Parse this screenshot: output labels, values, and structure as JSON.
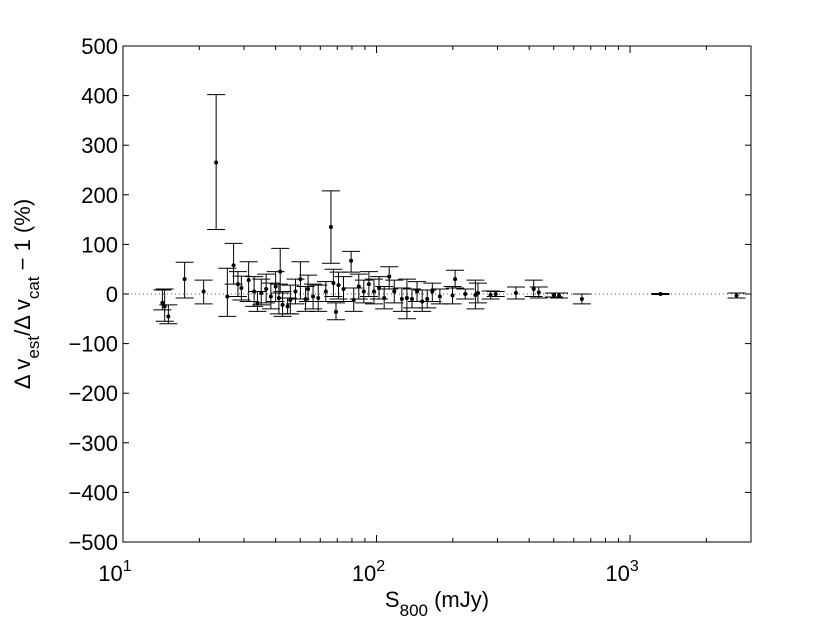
{
  "chart_data": {
    "type": "scatter",
    "x_scale": "log",
    "xlim": [
      10,
      3000
    ],
    "ylim": [
      -500,
      500
    ],
    "grid": false,
    "legend": "none",
    "reference_line": {
      "y": 0,
      "style": "dotted"
    },
    "yticks": [
      -500,
      -400,
      -300,
      -200,
      -100,
      0,
      100,
      200,
      300,
      400,
      500
    ],
    "yticks_text": [
      "−500",
      "−400",
      "−300",
      "−200",
      "−100",
      "0",
      "100",
      "200",
      "300",
      "400",
      "500"
    ],
    "xticks": [
      {
        "value": 10,
        "base": "10",
        "exp": "1"
      },
      {
        "value": 100,
        "base": "10",
        "exp": "2"
      },
      {
        "value": 1000,
        "base": "10",
        "exp": "3"
      }
    ],
    "xlabel": {
      "main": "S",
      "sub": "800",
      "rest": " (mJy)"
    },
    "ylabel": {
      "p1": "Δ v",
      "sub1": "est",
      "p2": "/Δ v",
      "sub2": "cat",
      "p3": " − 1 (%)"
    },
    "points": [
      {
        "x": 14.3,
        "y": -18,
        "lo": -32,
        "hi": 8
      },
      {
        "x": 14.6,
        "y": -25,
        "lo": -55,
        "hi": 10
      },
      {
        "x": 15.1,
        "y": -45,
        "lo": -60,
        "hi": -22
      },
      {
        "x": 17.5,
        "y": 30,
        "lo": -8,
        "hi": 64
      },
      {
        "x": 20.8,
        "y": 5,
        "lo": -20,
        "hi": 28
      },
      {
        "x": 23.3,
        "y": 265,
        "lo": 130,
        "hi": 402
      },
      {
        "x": 25.8,
        "y": -5,
        "lo": -45,
        "hi": 52
      },
      {
        "x": 27.3,
        "y": 58,
        "lo": 20,
        "hi": 102
      },
      {
        "x": 28.4,
        "y": 20,
        "lo": -5,
        "hi": 45
      },
      {
        "x": 29.3,
        "y": 12,
        "lo": -12,
        "hi": 36
      },
      {
        "x": 31.3,
        "y": 28,
        "lo": -15,
        "hi": 65
      },
      {
        "x": 32.9,
        "y": 5,
        "lo": -25,
        "hi": 35
      },
      {
        "x": 33.9,
        "y": -18,
        "lo": -35,
        "hi": 5
      },
      {
        "x": 35.1,
        "y": 2,
        "lo": -22,
        "hi": 30
      },
      {
        "x": 36.7,
        "y": 10,
        "lo": -18,
        "hi": 40
      },
      {
        "x": 38.3,
        "y": -5,
        "lo": -30,
        "hi": 22
      },
      {
        "x": 40.0,
        "y": 15,
        "lo": -15,
        "hi": 45
      },
      {
        "x": 41.2,
        "y": -8,
        "lo": -40,
        "hi": 20
      },
      {
        "x": 41.7,
        "y": 45,
        "lo": 2,
        "hi": 92
      },
      {
        "x": 42.6,
        "y": -22,
        "lo": -45,
        "hi": 5
      },
      {
        "x": 44.6,
        "y": -25,
        "lo": -40,
        "hi": -8
      },
      {
        "x": 45.7,
        "y": -12,
        "lo": -40,
        "hi": 18
      },
      {
        "x": 47.9,
        "y": 5,
        "lo": -20,
        "hi": 30
      },
      {
        "x": 50.1,
        "y": 30,
        "lo": -10,
        "hi": 65
      },
      {
        "x": 52.5,
        "y": -10,
        "lo": -35,
        "hi": 15
      },
      {
        "x": 53.7,
        "y": 10,
        "lo": -15,
        "hi": 38
      },
      {
        "x": 56.2,
        "y": -5,
        "lo": -30,
        "hi": 20
      },
      {
        "x": 58.9,
        "y": -8,
        "lo": -35,
        "hi": 18
      },
      {
        "x": 63.1,
        "y": 5,
        "lo": -15,
        "hi": 25
      },
      {
        "x": 66.1,
        "y": 135,
        "lo": 62,
        "hi": 208
      },
      {
        "x": 67.6,
        "y": 22,
        "lo": -5,
        "hi": 50
      },
      {
        "x": 69.2,
        "y": -36,
        "lo": -52,
        "hi": -18
      },
      {
        "x": 70.8,
        "y": 18,
        "lo": -10,
        "hi": 44
      },
      {
        "x": 74.1,
        "y": 10,
        "lo": -15,
        "hi": 35
      },
      {
        "x": 79.4,
        "y": 67,
        "lo": 44,
        "hi": 86
      },
      {
        "x": 81.3,
        "y": -12,
        "lo": -35,
        "hi": 12
      },
      {
        "x": 85.1,
        "y": 15,
        "lo": -10,
        "hi": 40
      },
      {
        "x": 89.1,
        "y": 5,
        "lo": -18,
        "hi": 28
      },
      {
        "x": 93.3,
        "y": 20,
        "lo": -5,
        "hi": 45
      },
      {
        "x": 97.7,
        "y": 5,
        "lo": -20,
        "hi": 30
      },
      {
        "x": 102.3,
        "y": 12,
        "lo": -10,
        "hi": 35
      },
      {
        "x": 107.2,
        "y": -8,
        "lo": -30,
        "hi": 15
      },
      {
        "x": 112.2,
        "y": 35,
        "lo": 10,
        "hi": 55
      },
      {
        "x": 117.5,
        "y": 5,
        "lo": -18,
        "hi": 28
      },
      {
        "x": 125.9,
        "y": -10,
        "lo": -35,
        "hi": 12
      },
      {
        "x": 131.8,
        "y": -8,
        "lo": -50,
        "hi": 30
      },
      {
        "x": 138.0,
        "y": -10,
        "lo": -28,
        "hi": 10
      },
      {
        "x": 144.5,
        "y": 5,
        "lo": -15,
        "hi": 25
      },
      {
        "x": 151.4,
        "y": -15,
        "lo": -35,
        "hi": 8
      },
      {
        "x": 158.5,
        "y": -10,
        "lo": -28,
        "hi": 8
      },
      {
        "x": 166.0,
        "y": 5,
        "lo": -15,
        "hi": 22
      },
      {
        "x": 177.8,
        "y": -5,
        "lo": -20,
        "hi": 10
      },
      {
        "x": 199.5,
        "y": -3,
        "lo": -20,
        "hi": 15
      },
      {
        "x": 204.2,
        "y": 30,
        "lo": 12,
        "hi": 48
      },
      {
        "x": 223.9,
        "y": 0,
        "lo": -10,
        "hi": 10
      },
      {
        "x": 245.5,
        "y": -2,
        "lo": -30,
        "hi": 28
      },
      {
        "x": 251.2,
        "y": 2,
        "lo": -18,
        "hi": 22
      },
      {
        "x": 281.8,
        "y": -2,
        "lo": -10,
        "hi": 6
      },
      {
        "x": 295.1,
        "y": 0,
        "lo": -5,
        "hi": 5
      },
      {
        "x": 354.8,
        "y": 2,
        "lo": -10,
        "hi": 14
      },
      {
        "x": 416.9,
        "y": 10,
        "lo": -5,
        "hi": 28
      },
      {
        "x": 436.5,
        "y": 3,
        "lo": -8,
        "hi": 14
      },
      {
        "x": 501.2,
        "y": -2,
        "lo": -6,
        "hi": 2
      },
      {
        "x": 524.8,
        "y": -3,
        "lo": -8,
        "hi": 2
      },
      {
        "x": 645.7,
        "y": -10,
        "lo": -20,
        "hi": 0
      },
      {
        "x": 1318.3,
        "y": 0,
        "lo": -1,
        "hi": 1
      },
      {
        "x": 2630.3,
        "y": -3,
        "lo": -8,
        "hi": 2
      }
    ]
  }
}
